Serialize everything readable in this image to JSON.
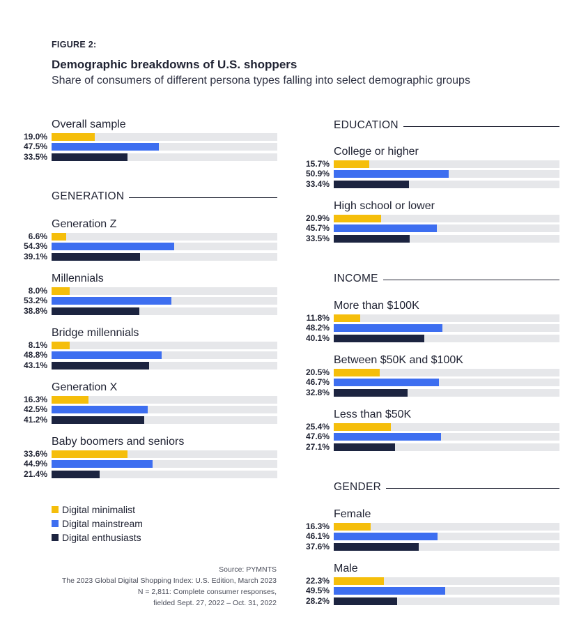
{
  "figure_label": "FIGURE 2:",
  "title": "Demographic breakdowns of U.S. shoppers",
  "subtitle": "Share of consumers of different persona types falling into select demographic groups",
  "legend": [
    {
      "name": "Digital minimalist",
      "color": "#f5be0b"
    },
    {
      "name": "Digital mainstream",
      "color": "#3d6ef0"
    },
    {
      "name": "Digital enthusiasts",
      "color": "#1c2440"
    }
  ],
  "source": {
    "line1": "Source: PYMNTS",
    "line2": "The 2023 Global Digital Shopping Index: U.S. Edition, March 2023",
    "line3": "N = 2,811: Complete consumer responses,",
    "line4": "fielded Sept. 27, 2022 – Oct. 31, 2022"
  },
  "chart_data": {
    "type": "bar",
    "orientation": "horizontal",
    "unit": "%",
    "xlim": [
      0,
      100
    ],
    "series_names": [
      "Digital minimalist",
      "Digital mainstream",
      "Digital enthusiasts"
    ],
    "series_colors": [
      "#f5be0b",
      "#3d6ef0",
      "#1c2440"
    ],
    "sections": [
      {
        "name": "",
        "groups": [
          {
            "label": "Overall sample",
            "values": [
              19.0,
              47.5,
              33.5
            ]
          }
        ]
      },
      {
        "name": "GENERATION",
        "groups": [
          {
            "label": "Generation Z",
            "values": [
              6.6,
              54.3,
              39.1
            ]
          },
          {
            "label": "Millennials",
            "values": [
              8.0,
              53.2,
              38.8
            ]
          },
          {
            "label": "Bridge millennials",
            "values": [
              8.1,
              48.8,
              43.1
            ]
          },
          {
            "label": "Generation X",
            "values": [
              16.3,
              42.5,
              41.2
            ]
          },
          {
            "label": "Baby boomers and seniors",
            "values": [
              33.6,
              44.9,
              21.4
            ]
          }
        ]
      },
      {
        "name": "EDUCATION",
        "groups": [
          {
            "label": "College or higher",
            "values": [
              15.7,
              50.9,
              33.4
            ]
          },
          {
            "label": "High school or lower",
            "values": [
              20.9,
              45.7,
              33.5
            ]
          }
        ]
      },
      {
        "name": "INCOME",
        "groups": [
          {
            "label": "More than $100K",
            "values": [
              11.8,
              48.2,
              40.1
            ]
          },
          {
            "label": "Between $50K and $100K",
            "values": [
              20.5,
              46.7,
              32.8
            ]
          },
          {
            "label": "Less than $50K",
            "values": [
              25.4,
              47.6,
              27.1
            ]
          }
        ]
      },
      {
        "name": "GENDER",
        "groups": [
          {
            "label": "Female",
            "values": [
              16.3,
              46.1,
              37.6
            ]
          },
          {
            "label": "Male",
            "values": [
              22.3,
              49.5,
              28.2
            ]
          }
        ]
      }
    ]
  }
}
